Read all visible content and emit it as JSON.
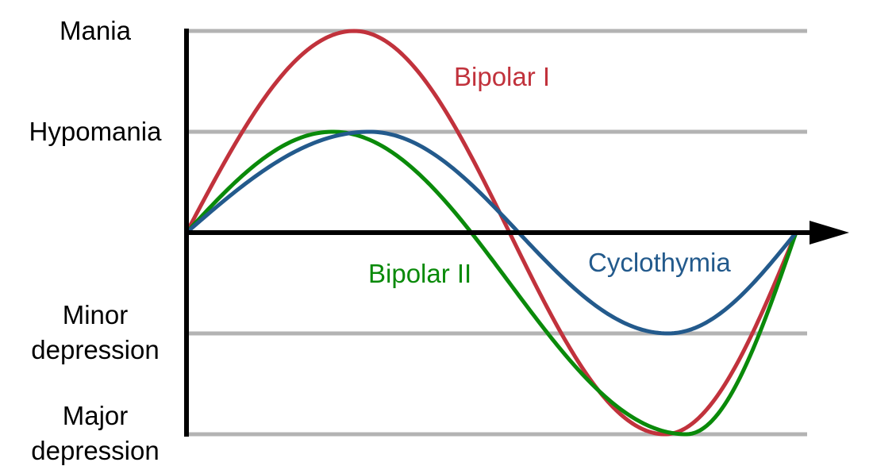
{
  "levels": [
    {
      "id": "mania",
      "lines": [
        "Mania"
      ],
      "value": 2
    },
    {
      "id": "hypomania",
      "lines": [
        "Hypomania"
      ],
      "value": 1
    },
    {
      "id": "minor-depression",
      "lines": [
        "Minor",
        "depression"
      ],
      "value": -1
    },
    {
      "id": "major-depression",
      "lines": [
        "Major",
        "depression"
      ],
      "value": -2
    }
  ],
  "curves": [
    {
      "id": "bipolar-i",
      "label": "Bipolar I",
      "color": "#c1323c",
      "peak": 2,
      "trough": -2,
      "peak_t": 0.275,
      "trough_t": 0.785
    },
    {
      "id": "bipolar-ii",
      "label": "Bipolar II",
      "color": "#0a8a0a",
      "peak": 1,
      "trough": -2,
      "peak_t": 0.24,
      "trough_t": 0.82
    },
    {
      "id": "cyclothymia",
      "label": "Cyclothymia",
      "color": "#235a8c",
      "peak": 1,
      "trough": -1,
      "peak_t": 0.3,
      "trough_t": 0.79
    }
  ],
  "colors": {
    "axis": "#000000",
    "gridline": "#b3b3b3"
  }
}
